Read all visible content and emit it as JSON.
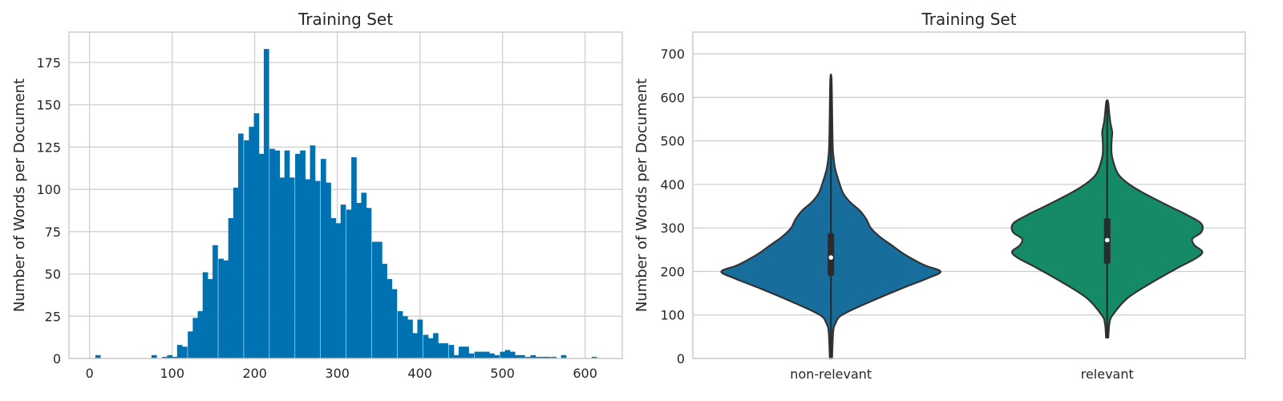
{
  "chart_data": [
    {
      "type": "bar",
      "subtype": "histogram",
      "title": "Training Set",
      "xlabel": "",
      "ylabel": "Number of Words per Document",
      "xlim": [
        -25,
        645
      ],
      "ylim": [
        0,
        193
      ],
      "xticks": [
        0,
        100,
        200,
        300,
        400,
        500,
        600
      ],
      "yticks": [
        0,
        25,
        50,
        75,
        100,
        125,
        150,
        175
      ],
      "bin_width": 6.2,
      "grid": true,
      "color": "#0072b2",
      "bins": [
        {
          "x": 10,
          "count": 2
        },
        {
          "x": 78,
          "count": 2
        },
        {
          "x": 91,
          "count": 1
        },
        {
          "x": 97,
          "count": 2
        },
        {
          "x": 103,
          "count": 1
        },
        {
          "x": 109,
          "count": 8
        },
        {
          "x": 115,
          "count": 7
        },
        {
          "x": 122,
          "count": 16
        },
        {
          "x": 128,
          "count": 24
        },
        {
          "x": 134,
          "count": 28
        },
        {
          "x": 140,
          "count": 51
        },
        {
          "x": 146,
          "count": 47
        },
        {
          "x": 152,
          "count": 67
        },
        {
          "x": 159,
          "count": 59
        },
        {
          "x": 165,
          "count": 58
        },
        {
          "x": 171,
          "count": 83
        },
        {
          "x": 177,
          "count": 101
        },
        {
          "x": 183,
          "count": 133
        },
        {
          "x": 190,
          "count": 129
        },
        {
          "x": 196,
          "count": 137
        },
        {
          "x": 202,
          "count": 145
        },
        {
          "x": 208,
          "count": 121
        },
        {
          "x": 214,
          "count": 183
        },
        {
          "x": 221,
          "count": 124
        },
        {
          "x": 227,
          "count": 123
        },
        {
          "x": 233,
          "count": 107
        },
        {
          "x": 239,
          "count": 123
        },
        {
          "x": 245,
          "count": 107
        },
        {
          "x": 252,
          "count": 121
        },
        {
          "x": 258,
          "count": 123
        },
        {
          "x": 264,
          "count": 106
        },
        {
          "x": 270,
          "count": 126
        },
        {
          "x": 276,
          "count": 105
        },
        {
          "x": 283,
          "count": 118
        },
        {
          "x": 289,
          "count": 104
        },
        {
          "x": 295,
          "count": 83
        },
        {
          "x": 301,
          "count": 80
        },
        {
          "x": 307,
          "count": 91
        },
        {
          "x": 314,
          "count": 88
        },
        {
          "x": 320,
          "count": 119
        },
        {
          "x": 326,
          "count": 92
        },
        {
          "x": 332,
          "count": 98
        },
        {
          "x": 338,
          "count": 89
        },
        {
          "x": 345,
          "count": 69
        },
        {
          "x": 351,
          "count": 69
        },
        {
          "x": 357,
          "count": 56
        },
        {
          "x": 363,
          "count": 47
        },
        {
          "x": 369,
          "count": 41
        },
        {
          "x": 376,
          "count": 28
        },
        {
          "x": 382,
          "count": 25
        },
        {
          "x": 388,
          "count": 23
        },
        {
          "x": 394,
          "count": 15
        },
        {
          "x": 400,
          "count": 23
        },
        {
          "x": 407,
          "count": 14
        },
        {
          "x": 413,
          "count": 12
        },
        {
          "x": 419,
          "count": 15
        },
        {
          "x": 425,
          "count": 9
        },
        {
          "x": 431,
          "count": 9
        },
        {
          "x": 438,
          "count": 8
        },
        {
          "x": 444,
          "count": 2
        },
        {
          "x": 450,
          "count": 7
        },
        {
          "x": 456,
          "count": 7
        },
        {
          "x": 462,
          "count": 3
        },
        {
          "x": 469,
          "count": 4
        },
        {
          "x": 475,
          "count": 4
        },
        {
          "x": 481,
          "count": 4
        },
        {
          "x": 487,
          "count": 3
        },
        {
          "x": 493,
          "count": 2
        },
        {
          "x": 500,
          "count": 4
        },
        {
          "x": 506,
          "count": 5
        },
        {
          "x": 512,
          "count": 4
        },
        {
          "x": 518,
          "count": 2
        },
        {
          "x": 524,
          "count": 2
        },
        {
          "x": 531,
          "count": 1
        },
        {
          "x": 537,
          "count": 2
        },
        {
          "x": 543,
          "count": 1
        },
        {
          "x": 549,
          "count": 1
        },
        {
          "x": 555,
          "count": 1
        },
        {
          "x": 562,
          "count": 1
        },
        {
          "x": 574,
          "count": 2
        },
        {
          "x": 611,
          "count": 1
        }
      ]
    },
    {
      "type": "violin",
      "title": "Training Set",
      "xlabel": "",
      "ylabel": "Number of Words per Document",
      "ylim": [
        0,
        750
      ],
      "yticks": [
        0,
        100,
        200,
        300,
        400,
        500,
        600,
        700
      ],
      "grid": true,
      "categories": [
        "non-relevant",
        "relevant"
      ],
      "violins": [
        {
          "category": "non-relevant",
          "color": "#176d9c",
          "min": 0,
          "q1": 190,
          "median": 232,
          "q3": 288,
          "max": 645,
          "whisker_low": 5,
          "whisker_high": 440,
          "density_profile": [
            [
              0,
              0.01
            ],
            [
              60,
              0.02
            ],
            [
              80,
              0.04
            ],
            [
              100,
              0.1
            ],
            [
              130,
              0.35
            ],
            [
              160,
              0.63
            ],
            [
              185,
              0.88
            ],
            [
              200,
              0.99
            ],
            [
              215,
              0.84
            ],
            [
              240,
              0.66
            ],
            [
              260,
              0.55
            ],
            [
              280,
              0.44
            ],
            [
              300,
              0.36
            ],
            [
              320,
              0.32
            ],
            [
              340,
              0.26
            ],
            [
              360,
              0.17
            ],
            [
              380,
              0.11
            ],
            [
              400,
              0.08
            ],
            [
              420,
              0.055
            ],
            [
              440,
              0.035
            ],
            [
              470,
              0.02
            ],
            [
              500,
              0.015
            ],
            [
              540,
              0.012
            ],
            [
              580,
              0.01
            ],
            [
              645,
              0.005
            ]
          ]
        },
        {
          "category": "relevant",
          "color": "#148a67",
          "min": 48,
          "q1": 218,
          "median": 272,
          "q3": 322,
          "max": 590,
          "whisker_low": 60,
          "whisker_high": 480,
          "density_profile": [
            [
              48,
              0.01
            ],
            [
              80,
              0.02
            ],
            [
              100,
              0.05
            ],
            [
              140,
              0.19
            ],
            [
              180,
              0.44
            ],
            [
              210,
              0.65
            ],
            [
              230,
              0.8
            ],
            [
              245,
              0.86
            ],
            [
              260,
              0.79
            ],
            [
              275,
              0.77
            ],
            [
              290,
              0.85
            ],
            [
              310,
              0.85
            ],
            [
              330,
              0.72
            ],
            [
              350,
              0.56
            ],
            [
              380,
              0.33
            ],
            [
              400,
              0.2
            ],
            [
              420,
              0.11
            ],
            [
              440,
              0.07
            ],
            [
              470,
              0.04
            ],
            [
              500,
              0.04
            ],
            [
              520,
              0.045
            ],
            [
              540,
              0.03
            ],
            [
              560,
              0.02
            ],
            [
              590,
              0.008
            ]
          ]
        }
      ]
    }
  ]
}
